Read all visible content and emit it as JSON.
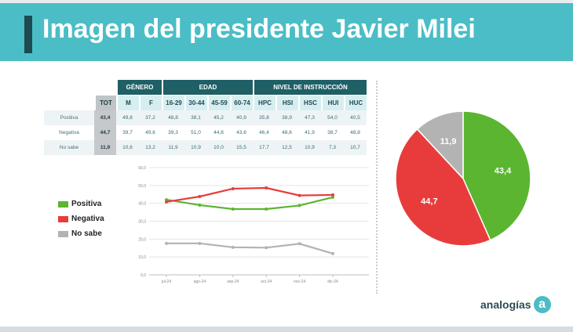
{
  "header": {
    "title": "Imagen del presidente Javier Milei"
  },
  "table": {
    "groups": {
      "genero": "GÉNERO",
      "edad": "EDAD",
      "nivel": "NIVEL DE INSTRUCCIÓN"
    },
    "columns": [
      "TOT",
      "M",
      "F",
      "16-29",
      "30-44",
      "45-59",
      "60-74",
      "HPC",
      "HSI",
      "HSC",
      "HUI",
      "HUC"
    ],
    "rows": [
      {
        "label": "Positiva",
        "values": [
          "43,4",
          "49,8",
          "37,2",
          "48,8",
          "38,1",
          "45,2",
          "40,9",
          "35,8",
          "38,9",
          "47,3",
          "54,0",
          "40,5"
        ]
      },
      {
        "label": "Negativa",
        "values": [
          "44,7",
          "39,7",
          "49,6",
          "39,3",
          "51,0",
          "44,8",
          "43,6",
          "46,4",
          "48,6",
          "41,9",
          "38,7",
          "48,8"
        ]
      },
      {
        "label": "No sabe",
        "values": [
          "11,9",
          "10,6",
          "13,2",
          "11,9",
          "10,9",
          "10,0",
          "15,5",
          "17,7",
          "12,5",
          "10,9",
          "7,3",
          "10,7"
        ]
      }
    ]
  },
  "legend": {
    "positiva": "Positiva",
    "negativa": "Negativa",
    "nosabe": "No sabe"
  },
  "colors": {
    "positiva": "#5bb531",
    "negativa": "#e83c3c",
    "nosabe": "#b3b3b3",
    "header": "#4bbdc6",
    "dark": "#1f5f66"
  },
  "chart_data": [
    {
      "type": "line",
      "x": [
        "jul-24",
        "ago-24",
        "sep-24",
        "oct-24",
        "nov-24",
        "dic-24"
      ],
      "yticks": [
        "0,0",
        "10,0",
        "20,0",
        "30,0",
        "40,0",
        "50,0",
        "60,0"
      ],
      "ylim": [
        0,
        60
      ],
      "series": [
        {
          "name": "Positiva",
          "values": [
            42.0,
            39.0,
            36.8,
            36.8,
            38.8,
            43.4
          ]
        },
        {
          "name": "Negativa",
          "values": [
            40.8,
            43.8,
            48.2,
            48.6,
            44.4,
            44.7
          ]
        },
        {
          "name": "No sabe",
          "values": [
            17.6,
            17.6,
            15.4,
            15.2,
            17.4,
            11.9
          ]
        }
      ]
    },
    {
      "type": "pie",
      "slices": [
        {
          "name": "Positiva",
          "value": 43.4,
          "label": "43,4"
        },
        {
          "name": "Negativa",
          "value": 44.7,
          "label": "44,7"
        },
        {
          "name": "No sabe",
          "value": 11.9,
          "label": "11,9"
        }
      ]
    }
  ],
  "logo": {
    "text": "analogías",
    "mark": "a"
  }
}
